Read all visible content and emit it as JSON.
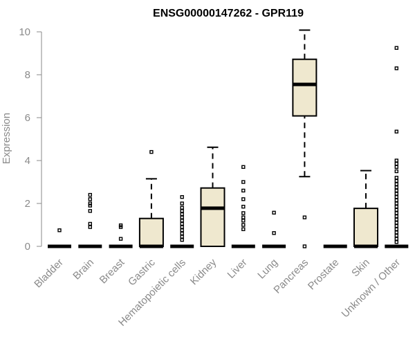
{
  "chart_data": {
    "type": "box",
    "title": "ENSG00000147262 - GPR119",
    "ylabel": "Expression",
    "ylim": [
      0,
      10
    ],
    "yticks": [
      0,
      2,
      4,
      6,
      8,
      10
    ],
    "categories": [
      "Bladder",
      "Brain",
      "Breast",
      "Gastric",
      "Hematopoietic cells",
      "Kidney",
      "Liver",
      "Lung",
      "Pancreas",
      "Prostate",
      "Skin",
      "Unknown / Other"
    ],
    "boxes": [
      {
        "category": "Bladder",
        "min": 0,
        "q1": 0,
        "median": 0,
        "q3": 0,
        "max": 0,
        "outliers": [
          0.75
        ]
      },
      {
        "category": "Brain",
        "min": 0,
        "q1": 0,
        "median": 0,
        "q3": 0,
        "max": 0,
        "outliers": [
          0.9,
          1.05,
          1.65,
          1.9,
          2.0,
          2.2,
          2.4
        ]
      },
      {
        "category": "Breast",
        "min": 0,
        "q1": 0,
        "median": 0,
        "q3": 0,
        "max": 0,
        "outliers": [
          0.35,
          0.9,
          0.98
        ]
      },
      {
        "category": "Gastric",
        "min": 0,
        "q1": 0,
        "median": 0,
        "q3": 1.3,
        "max": 3.15,
        "outliers": [
          4.4
        ]
      },
      {
        "category": "Hematopoietic cells",
        "min": 0,
        "q1": 0,
        "median": 0,
        "q3": 0,
        "max": 0,
        "outliers": [
          0.3,
          0.45,
          0.6,
          0.75,
          0.9,
          1.05,
          1.2,
          1.35,
          1.5,
          1.65,
          1.8,
          2.0,
          2.3
        ]
      },
      {
        "category": "Kidney",
        "min": 0,
        "q1": 0,
        "median": 1.78,
        "q3": 2.72,
        "max": 4.62,
        "outliers": []
      },
      {
        "category": "Liver",
        "min": 0,
        "q1": 0,
        "median": 0,
        "q3": 0,
        "max": 0,
        "outliers": [
          0.8,
          1.0,
          1.2,
          1.35,
          1.55,
          1.85,
          2.2,
          2.6,
          3.0,
          3.7
        ]
      },
      {
        "category": "Lung",
        "min": 0,
        "q1": 0,
        "median": 0,
        "q3": 0,
        "max": 0,
        "outliers": [
          0.62,
          1.57
        ]
      },
      {
        "category": "Pancreas",
        "min": 3.25,
        "q1": 6.08,
        "median": 7.55,
        "q3": 8.72,
        "max": 10.08,
        "outliers": [
          0.0,
          1.35
        ]
      },
      {
        "category": "Prostate",
        "min": 0,
        "q1": 0,
        "median": 0,
        "q3": 0,
        "max": 0,
        "outliers": []
      },
      {
        "category": "Skin",
        "min": 0,
        "q1": 0,
        "median": 0,
        "q3": 1.77,
        "max": 3.53,
        "outliers": []
      },
      {
        "category": "Unknown / Other",
        "min": 0,
        "q1": 0,
        "median": 0,
        "q3": 0,
        "max": 0,
        "outliers": [
          0.2,
          0.35,
          0.5,
          0.65,
          0.8,
          0.95,
          1.1,
          1.25,
          1.4,
          1.55,
          1.7,
          1.85,
          2.0,
          2.15,
          2.3,
          2.45,
          2.6,
          2.75,
          2.9,
          3.05,
          3.2,
          3.5,
          3.7,
          3.85,
          4.0,
          5.35,
          8.3,
          9.25
        ]
      }
    ],
    "colors": {
      "box_fill": "#efe8cf",
      "axis": "#8a8a8a",
      "mark": "#000000"
    },
    "grid": false,
    "legend": "none"
  }
}
